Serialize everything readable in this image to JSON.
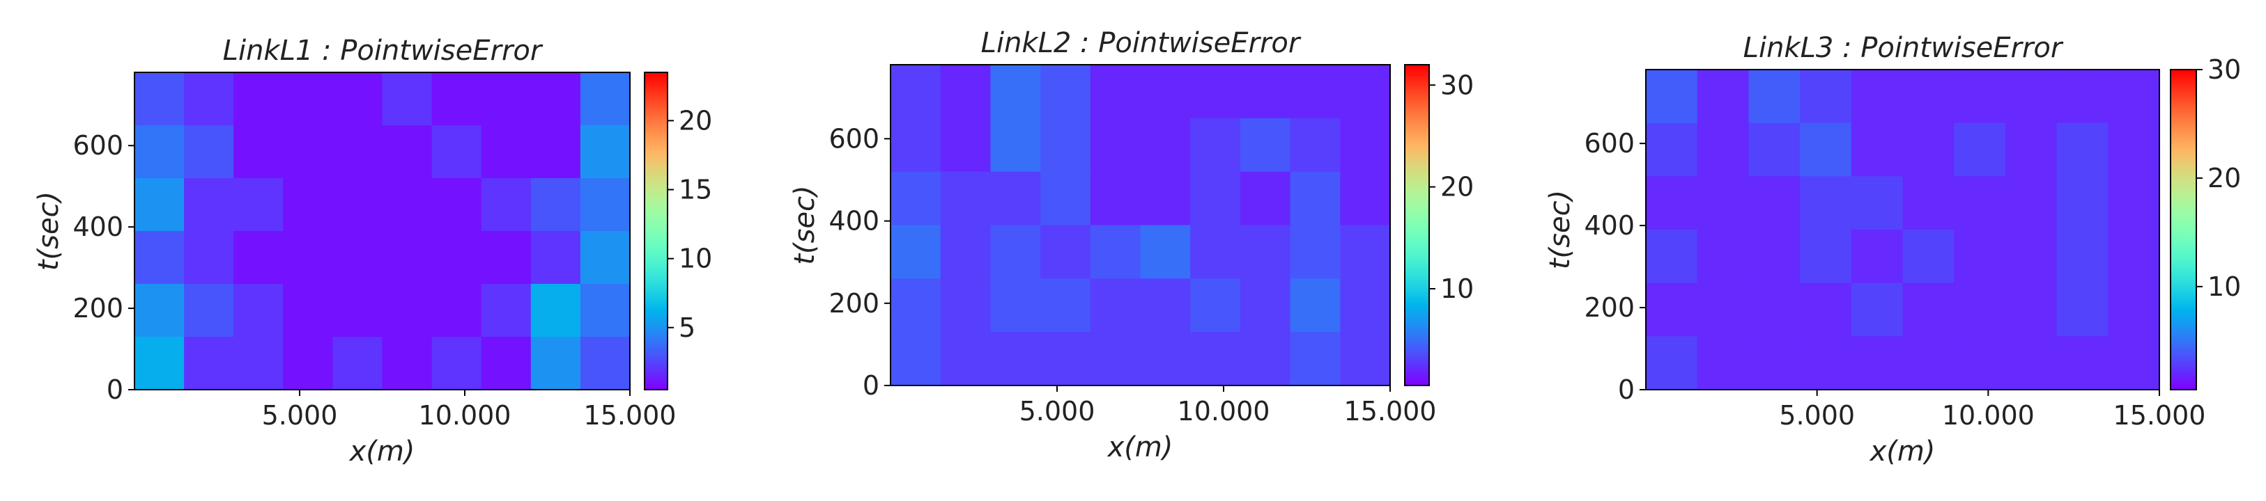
{
  "chart_data": [
    {
      "type": "heatmap",
      "title": "LinkL1 : PointwiseError",
      "xlabel": "x(m)",
      "ylabel": "t(sec)",
      "colormap": "rainbow",
      "xlim": [
        0,
        15000
      ],
      "xticks": [
        {
          "value": 5000,
          "label": "5.000"
        },
        {
          "value": 10000,
          "label": "10.000"
        },
        {
          "value": 15000,
          "label": "15.000"
        }
      ],
      "ylim": [
        0,
        780
      ],
      "yticks": [
        0,
        200,
        400,
        600
      ],
      "clim": [
        0.5,
        23.5
      ],
      "cticks": [
        5,
        10,
        15,
        20
      ],
      "z": [
        [
          3,
          2,
          1,
          1,
          1,
          2,
          1,
          1,
          1,
          4
        ],
        [
          4,
          3,
          1,
          1,
          1,
          1,
          2,
          1,
          1,
          5
        ],
        [
          5,
          2,
          2,
          1,
          1,
          1,
          1,
          2,
          3,
          4
        ],
        [
          3,
          2,
          1,
          1,
          1,
          1,
          1,
          1,
          2,
          5
        ],
        [
          5,
          3,
          2,
          1,
          1,
          1,
          1,
          2,
          6,
          4
        ],
        [
          6,
          2,
          2,
          1,
          2,
          1,
          2,
          1,
          5,
          3
        ]
      ]
    },
    {
      "type": "heatmap",
      "title": "LinkL2 : PointwiseError",
      "xlabel": "x(m)",
      "ylabel": "t(sec)",
      "colormap": "rainbow",
      "xlim": [
        0,
        15000
      ],
      "xticks": [
        {
          "value": 5000,
          "label": "5.000"
        },
        {
          "value": 10000,
          "label": "10.000"
        },
        {
          "value": 15000,
          "label": "15.000"
        }
      ],
      "ylim": [
        0,
        780
      ],
      "yticks": [
        0,
        200,
        400,
        600
      ],
      "clim": [
        0.5,
        32
      ],
      "cticks": [
        10,
        20,
        30
      ],
      "z": [
        [
          3,
          2,
          5,
          4,
          2,
          2,
          2,
          2,
          2,
          2
        ],
        [
          3,
          2,
          5,
          4,
          2,
          2,
          3,
          4,
          3,
          2
        ],
        [
          4,
          3,
          3,
          4,
          2,
          2,
          3,
          2,
          4,
          2
        ],
        [
          5,
          3,
          4,
          3,
          4,
          5,
          3,
          3,
          4,
          3
        ],
        [
          4,
          3,
          4,
          4,
          3,
          3,
          4,
          3,
          5,
          3
        ],
        [
          4,
          3,
          3,
          3,
          3,
          3,
          3,
          3,
          4,
          3
        ]
      ]
    },
    {
      "type": "heatmap",
      "title": "LinkL3 : PointwiseError",
      "xlabel": "x(m)",
      "ylabel": "t(sec)",
      "colormap": "rainbow",
      "xlim": [
        0,
        15000
      ],
      "xticks": [
        {
          "value": 5000,
          "label": "5.000"
        },
        {
          "value": 10000,
          "label": "10.000"
        },
        {
          "value": 15000,
          "label": "15.000"
        }
      ],
      "ylim": [
        0,
        780
      ],
      "yticks": [
        0,
        200,
        400,
        600
      ],
      "clim": [
        0.5,
        30
      ],
      "cticks": [
        10,
        20,
        30
      ],
      "z": [
        [
          4,
          2,
          4,
          3,
          2,
          2,
          2,
          2,
          2,
          2
        ],
        [
          3,
          2,
          3,
          4,
          2,
          2,
          3,
          2,
          3,
          2
        ],
        [
          2,
          2,
          2,
          3,
          3,
          2,
          2,
          2,
          3,
          2
        ],
        [
          3,
          2,
          2,
          3,
          2,
          3,
          2,
          2,
          3,
          2
        ],
        [
          2,
          2,
          2,
          2,
          3,
          2,
          2,
          2,
          3,
          2
        ],
        [
          3,
          2,
          2,
          2,
          2,
          2,
          2,
          2,
          2,
          2
        ]
      ]
    }
  ]
}
